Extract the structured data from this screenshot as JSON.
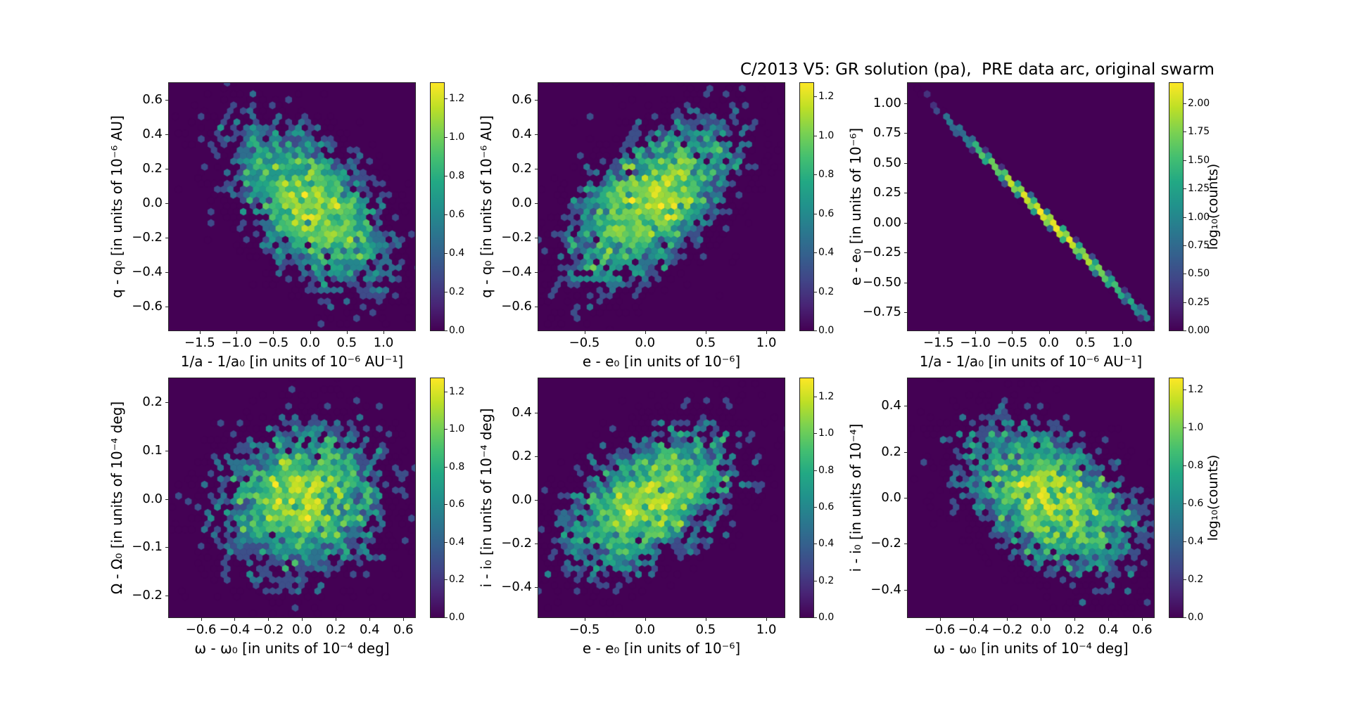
{
  "figure": {
    "title": "C/2013 V5: GR solution (pa),  PRE data arc, original swarm",
    "background_color": "#ffffff",
    "hexbin_background_color": "#440154",
    "text_color": "#000000",
    "colormap": "viridis",
    "viridis_stops": [
      "#440154",
      "#482475",
      "#414487",
      "#355f8d",
      "#2a788e",
      "#21918c",
      "#22a884",
      "#44bf70",
      "#7ad151",
      "#bddf26",
      "#fde725"
    ]
  },
  "chart_data": [
    {
      "panel": "top-left",
      "type": "heatmap",
      "subtype": "hexbin-density",
      "xlabel": "1/a - 1/a₀ [in units of 10⁻⁶ AU⁻¹]",
      "ylabel": "q - q₀ [in units of 10⁻⁶ AU]",
      "xlim": [
        -1.92,
        1.43
      ],
      "ylim": [
        -0.74,
        0.7
      ],
      "xticks": [
        "−1.5",
        "−1.0",
        "−0.5",
        "0.0",
        "0.5",
        "1.0"
      ],
      "yticks": [
        "0.6",
        "0.4",
        "0.2",
        "0.0",
        "−0.2",
        "−0.4",
        "−0.6"
      ],
      "grid": false,
      "colorbar": {
        "ticks": [
          "0.0",
          "0.2",
          "0.4",
          "0.6",
          "0.8",
          "1.0",
          "1.2"
        ],
        "vmax": 1.28,
        "label": null
      },
      "distribution_estimate": {
        "kind": "gaussian-cloud",
        "center": [
          0.02,
          -0.02
        ],
        "sigma": [
          0.55,
          0.25
        ],
        "correlation": -0.52,
        "n_points": 3400,
        "seed": 101
      }
    },
    {
      "panel": "top-middle",
      "type": "heatmap",
      "subtype": "hexbin-density",
      "xlabel": "e - e₀ [in units of 10⁻⁶]",
      "ylabel": "q - q₀ [in units of 10⁻⁶ AU]",
      "xlim": [
        -0.88,
        1.15
      ],
      "ylim": [
        -0.74,
        0.7
      ],
      "xticks": [
        "−0.5",
        "0.0",
        "0.5",
        "1.0"
      ],
      "yticks": [
        "0.6",
        "0.4",
        "0.2",
        "0.0",
        "−0.2",
        "−0.4",
        "−0.6"
      ],
      "grid": false,
      "colorbar": {
        "ticks": [
          "0.0",
          "0.2",
          "0.4",
          "0.6",
          "0.8",
          "1.0",
          "1.2"
        ],
        "vmax": 1.27,
        "label": null
      },
      "distribution_estimate": {
        "kind": "gaussian-cloud",
        "center": [
          0.05,
          0.0
        ],
        "sigma": [
          0.36,
          0.25
        ],
        "correlation": 0.56,
        "n_points": 3400,
        "seed": 202
      }
    },
    {
      "panel": "top-right",
      "type": "heatmap",
      "subtype": "hexbin-density",
      "xlabel": "1/a - 1/a₀ [in units of 10⁻⁶ AU⁻¹]",
      "ylabel": "e - e₀ [in units of 10⁻⁶]",
      "xlim": [
        -1.92,
        1.43
      ],
      "ylim": [
        -0.9,
        1.17
      ],
      "xticks": [
        "−1.5",
        "−1.0",
        "−0.5",
        "0.0",
        "0.5",
        "1.0"
      ],
      "yticks": [
        "1.00",
        "0.75",
        "0.50",
        "0.25",
        "0.00",
        "−0.25",
        "−0.50",
        "−0.75"
      ],
      "grid": false,
      "colorbar": {
        "ticks": [
          "0.00",
          "0.25",
          "0.50",
          "0.75",
          "1.00",
          "1.25",
          "1.50",
          "1.75",
          "2.00"
        ],
        "vmax": 2.18,
        "label": "log₁₀(counts)"
      },
      "distribution_estimate": {
        "kind": "tight-line",
        "center_x": 0.0,
        "sigma_x": 0.55,
        "slope": -0.615,
        "intercept": 0.02,
        "perpendicular_noise": 0.012,
        "n_points": 2400,
        "seed": 303
      }
    },
    {
      "panel": "bottom-left",
      "type": "heatmap",
      "subtype": "hexbin-density",
      "xlabel": "ω - ω₀ [in units of 10⁻⁴ deg]",
      "ylabel": "Ω - Ω₀ [in units of 10⁻⁴ deg]",
      "xlim": [
        -0.79,
        0.67
      ],
      "ylim": [
        -0.245,
        0.25
      ],
      "xticks": [
        "−0.6",
        "−0.4",
        "−0.2",
        "0.0",
        "0.2",
        "0.4",
        "0.6"
      ],
      "yticks": [
        "0.2",
        "0.1",
        "0.0",
        "−0.1",
        "−0.2"
      ],
      "grid": false,
      "colorbar": {
        "ticks": [
          "0.0",
          "0.2",
          "0.4",
          "0.6",
          "0.8",
          "1.0",
          "1.2"
        ],
        "vmax": 1.27,
        "label": null
      },
      "distribution_estimate": {
        "kind": "gaussian-cloud",
        "center": [
          0.0,
          0.0
        ],
        "sigma": [
          0.26,
          0.082
        ],
        "correlation": 0.08,
        "n_points": 3400,
        "seed": 404
      }
    },
    {
      "panel": "bottom-middle",
      "type": "heatmap",
      "subtype": "hexbin-density",
      "xlabel": "e - e₀ [in units of 10⁻⁶]",
      "ylabel": "i - i₀ [in units of 10⁻⁴ deg]",
      "xlim": [
        -0.88,
        1.15
      ],
      "ylim": [
        -0.54,
        0.56
      ],
      "xticks": [
        "−0.5",
        "0.0",
        "0.5",
        "1.0"
      ],
      "yticks": [
        "0.4",
        "0.2",
        "0.0",
        "−0.2",
        "−0.4"
      ],
      "grid": false,
      "colorbar": {
        "ticks": [
          "0.0",
          "0.2",
          "0.4",
          "0.6",
          "0.8",
          "1.0",
          "1.2"
        ],
        "vmax": 1.3,
        "label": null
      },
      "distribution_estimate": {
        "kind": "gaussian-cloud",
        "center": [
          0.02,
          0.0
        ],
        "sigma": [
          0.37,
          0.17
        ],
        "correlation": 0.5,
        "n_points": 3400,
        "seed": 505
      }
    },
    {
      "panel": "bottom-right",
      "type": "heatmap",
      "subtype": "hexbin-density",
      "xlabel": "ω - ω₀ [in units of 10⁻⁴ deg]",
      "ylabel": "i - i₀ [in units of 10⁻⁴]",
      "xlim": [
        -0.79,
        0.67
      ],
      "ylim": [
        -0.52,
        0.52
      ],
      "xticks": [
        "−0.6",
        "−0.4",
        "−0.2",
        "0.0",
        "0.2",
        "0.4",
        "0.6"
      ],
      "yticks": [
        "0.4",
        "0.2",
        "0.0",
        "−0.2",
        "−0.4"
      ],
      "grid": false,
      "colorbar": {
        "ticks": [
          "0.0",
          "0.2",
          "0.4",
          "0.6",
          "0.8",
          "1.0",
          "1.2"
        ],
        "vmax": 1.26,
        "label": "log₁₀(counts)"
      },
      "distribution_estimate": {
        "kind": "gaussian-cloud",
        "center": [
          0.06,
          -0.01
        ],
        "sigma": [
          0.27,
          0.17
        ],
        "correlation": -0.45,
        "n_points": 3400,
        "seed": 606
      }
    }
  ]
}
